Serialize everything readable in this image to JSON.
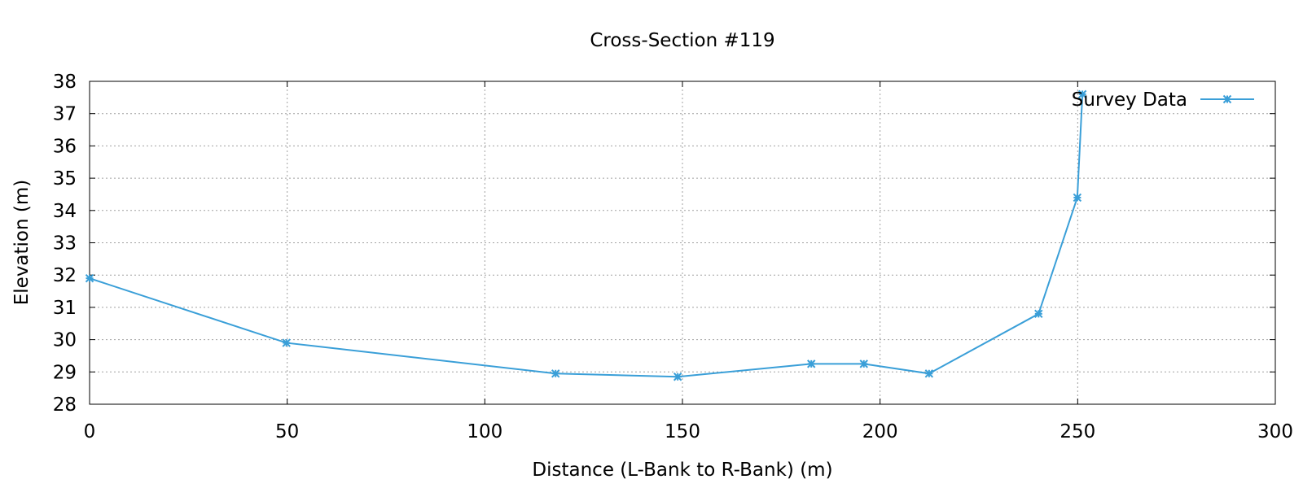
{
  "chart_data": {
    "type": "line",
    "title": "Cross-Section #119",
    "xlabel": "Distance (L-Bank to R-Bank) (m)",
    "ylabel": "Elevation (m)",
    "xlim": [
      0,
      300
    ],
    "ylim": [
      28,
      38
    ],
    "xticks": [
      "0",
      "50",
      "100",
      "150",
      "200",
      "250",
      "300"
    ],
    "yticks": [
      "28",
      "29",
      "30",
      "31",
      "32",
      "33",
      "34",
      "35",
      "36",
      "37",
      "38"
    ],
    "grid": true,
    "legend_position": "top-right",
    "series": [
      {
        "name": "Survey Data",
        "color": "#3a9fd8",
        "marker": "star",
        "x": [
          0,
          49.8,
          117.9,
          148.8,
          182.6,
          195.9,
          212.4,
          240.1,
          249.9,
          251.2
        ],
        "y": [
          31.9,
          29.9,
          28.95,
          28.85,
          29.25,
          29.25,
          28.95,
          30.8,
          34.4,
          37.6
        ]
      }
    ]
  }
}
